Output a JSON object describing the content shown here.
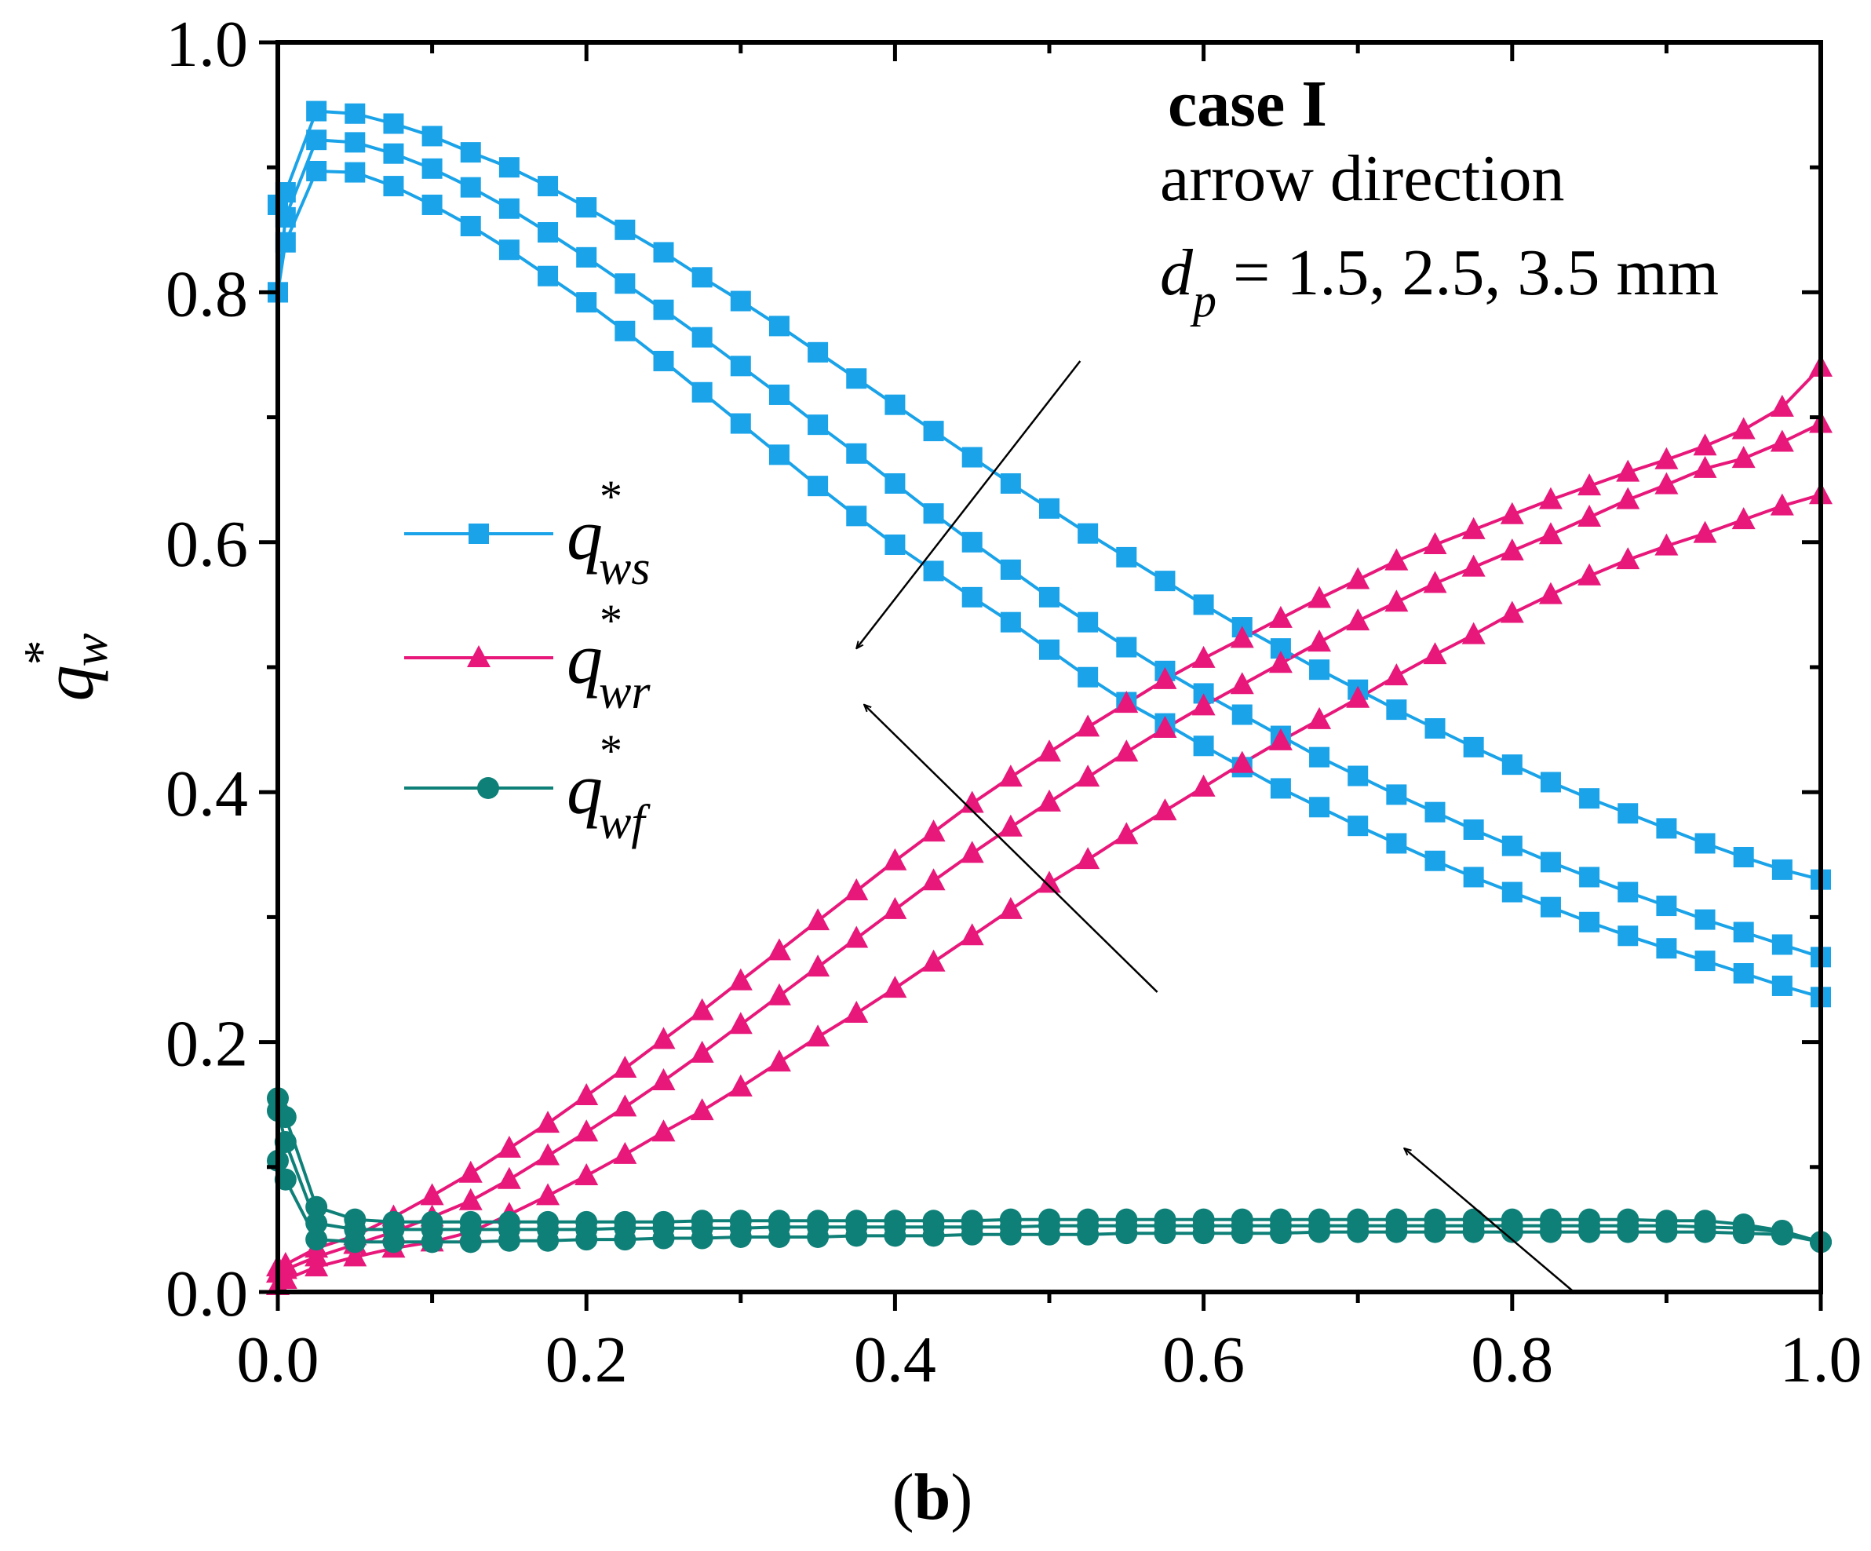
{
  "chart_data": {
    "type": "line",
    "title": "",
    "subfigure_label": {
      "open": "(",
      "letter": "b",
      "close": ")"
    },
    "xlabel": "",
    "ylabel": {
      "symbol": "q",
      "superscript": "*",
      "subscript": "w"
    },
    "xlim": [
      0,
      1.0
    ],
    "ylim": [
      0,
      1.0
    ],
    "x_ticks": [
      "0.0",
      "0.2",
      "0.4",
      "0.6",
      "0.8",
      "1.0"
    ],
    "y_ticks": [
      "0.0",
      "0.2",
      "0.4",
      "0.6",
      "0.8",
      "1.0"
    ],
    "grid": false,
    "legend": {
      "position": "center-left",
      "entries": [
        {
          "symbol": "q",
          "superscript": "*",
          "subscript": "ws",
          "marker": "square",
          "color": "#1aa3e8"
        },
        {
          "symbol": "q",
          "superscript": "*",
          "subscript": "wr",
          "marker": "triangle",
          "color": "#e8177a"
        },
        {
          "symbol": "q",
          "superscript": "*",
          "subscript": "wf",
          "marker": "circle",
          "color": "#0e8078"
        }
      ]
    },
    "annotations": {
      "line1": "case I",
      "line2": "arrow direction",
      "line3": {
        "symbol": "d",
        "subscript": "p",
        "text": " = 1.5, 2.5, 3.5 mm"
      }
    },
    "arrows": [
      {
        "from": [
          0.52,
          0.745
        ],
        "to": [
          0.375,
          0.515
        ]
      },
      {
        "from": [
          0.57,
          0.24
        ],
        "to": [
          0.38,
          0.47
        ]
      },
      {
        "from": [
          0.84,
          0.0
        ],
        "to": [
          0.73,
          0.115
        ]
      }
    ],
    "x": [
      0.0,
      0.005,
      0.025,
      0.05,
      0.075,
      0.1,
      0.125,
      0.15,
      0.175,
      0.2,
      0.225,
      0.25,
      0.275,
      0.3,
      0.325,
      0.35,
      0.375,
      0.4,
      0.425,
      0.45,
      0.475,
      0.5,
      0.525,
      0.55,
      0.575,
      0.6,
      0.625,
      0.65,
      0.675,
      0.7,
      0.725,
      0.75,
      0.775,
      0.8,
      0.825,
      0.85,
      0.875,
      0.9,
      0.925,
      0.95,
      0.975,
      1.0
    ],
    "series": [
      {
        "group": "q_ws",
        "name": "q*ws dp=1.5 mm",
        "color": "#1aa3e8",
        "marker": "square",
        "values": [
          0.87,
          0.88,
          0.945,
          0.943,
          0.935,
          0.925,
          0.912,
          0.9,
          0.885,
          0.868,
          0.85,
          0.832,
          0.812,
          0.793,
          0.773,
          0.752,
          0.731,
          0.71,
          0.689,
          0.668,
          0.647,
          0.627,
          0.607,
          0.588,
          0.569,
          0.55,
          0.532,
          0.515,
          0.498,
          0.482,
          0.466,
          0.451,
          0.436,
          0.422,
          0.408,
          0.395,
          0.383,
          0.371,
          0.359,
          0.348,
          0.338,
          0.33
        ]
      },
      {
        "group": "q_ws",
        "name": "q*ws dp=2.5 mm",
        "color": "#1aa3e8",
        "marker": "square",
        "values": [
          0.8,
          0.86,
          0.922,
          0.92,
          0.911,
          0.899,
          0.884,
          0.867,
          0.848,
          0.828,
          0.807,
          0.786,
          0.764,
          0.741,
          0.718,
          0.694,
          0.671,
          0.647,
          0.623,
          0.6,
          0.578,
          0.556,
          0.536,
          0.516,
          0.497,
          0.479,
          0.462,
          0.445,
          0.428,
          0.413,
          0.398,
          0.384,
          0.37,
          0.357,
          0.344,
          0.332,
          0.32,
          0.309,
          0.298,
          0.288,
          0.278,
          0.268
        ]
      },
      {
        "group": "q_ws",
        "name": "q*ws dp=3.5 mm",
        "color": "#1aa3e8",
        "marker": "square",
        "values": [
          0.8,
          0.84,
          0.897,
          0.896,
          0.885,
          0.87,
          0.853,
          0.834,
          0.813,
          0.792,
          0.769,
          0.745,
          0.72,
          0.695,
          0.67,
          0.645,
          0.621,
          0.598,
          0.577,
          0.556,
          0.536,
          0.514,
          0.492,
          0.472,
          0.455,
          0.437,
          0.42,
          0.403,
          0.388,
          0.373,
          0.359,
          0.345,
          0.332,
          0.32,
          0.308,
          0.296,
          0.285,
          0.275,
          0.265,
          0.255,
          0.245,
          0.236
        ]
      },
      {
        "group": "q_wr",
        "name": "q*wr dp=1.5 mm",
        "color": "#e8177a",
        "marker": "triangle",
        "values": [
          0.02,
          0.022,
          0.035,
          0.045,
          0.06,
          0.077,
          0.095,
          0.115,
          0.135,
          0.157,
          0.179,
          0.202,
          0.225,
          0.249,
          0.273,
          0.297,
          0.321,
          0.345,
          0.368,
          0.391,
          0.412,
          0.432,
          0.452,
          0.471,
          0.49,
          0.507,
          0.523,
          0.539,
          0.555,
          0.57,
          0.585,
          0.598,
          0.61,
          0.622,
          0.634,
          0.645,
          0.656,
          0.666,
          0.677,
          0.69,
          0.708,
          0.74
        ]
      },
      {
        "group": "q_wr",
        "name": "q*wr dp=2.5 mm",
        "color": "#e8177a",
        "marker": "triangle",
        "values": [
          0.015,
          0.018,
          0.028,
          0.038,
          0.048,
          0.06,
          0.073,
          0.09,
          0.109,
          0.128,
          0.148,
          0.169,
          0.191,
          0.214,
          0.237,
          0.26,
          0.283,
          0.306,
          0.329,
          0.351,
          0.372,
          0.392,
          0.412,
          0.432,
          0.451,
          0.469,
          0.486,
          0.503,
          0.52,
          0.537,
          0.552,
          0.567,
          0.58,
          0.593,
          0.606,
          0.62,
          0.634,
          0.646,
          0.659,
          0.667,
          0.68,
          0.695
        ]
      },
      {
        "group": "q_wr",
        "name": "q*wr dp=3.5 mm",
        "color": "#e8177a",
        "marker": "triangle",
        "values": [
          0.005,
          0.01,
          0.02,
          0.028,
          0.035,
          0.04,
          0.048,
          0.062,
          0.077,
          0.093,
          0.11,
          0.128,
          0.145,
          0.164,
          0.184,
          0.204,
          0.223,
          0.243,
          0.264,
          0.285,
          0.306,
          0.327,
          0.346,
          0.366,
          0.385,
          0.404,
          0.423,
          0.441,
          0.458,
          0.475,
          0.493,
          0.51,
          0.526,
          0.543,
          0.558,
          0.573,
          0.586,
          0.597,
          0.607,
          0.618,
          0.629,
          0.638
        ]
      },
      {
        "group": "q_wf",
        "name": "q*wf dp=1.5 mm",
        "color": "#0e8078",
        "marker": "circle",
        "values": [
          0.155,
          0.14,
          0.068,
          0.058,
          0.056,
          0.056,
          0.056,
          0.056,
          0.056,
          0.056,
          0.056,
          0.056,
          0.057,
          0.057,
          0.057,
          0.057,
          0.057,
          0.057,
          0.057,
          0.057,
          0.058,
          0.058,
          0.058,
          0.058,
          0.058,
          0.058,
          0.058,
          0.058,
          0.058,
          0.058,
          0.058,
          0.058,
          0.058,
          0.058,
          0.058,
          0.058,
          0.058,
          0.057,
          0.057,
          0.054,
          0.049,
          0.04
        ]
      },
      {
        "group": "q_wf",
        "name": "q*wf dp=2.5 mm",
        "color": "#0e8078",
        "marker": "circle",
        "values": [
          0.145,
          0.12,
          0.055,
          0.05,
          0.05,
          0.05,
          0.05,
          0.05,
          0.05,
          0.05,
          0.051,
          0.051,
          0.051,
          0.051,
          0.052,
          0.052,
          0.052,
          0.052,
          0.052,
          0.052,
          0.052,
          0.053,
          0.053,
          0.053,
          0.053,
          0.053,
          0.053,
          0.053,
          0.053,
          0.053,
          0.053,
          0.053,
          0.053,
          0.053,
          0.053,
          0.053,
          0.053,
          0.053,
          0.052,
          0.051,
          0.048,
          0.04
        ]
      },
      {
        "group": "q_wf",
        "name": "q*wf dp=3.5 mm",
        "color": "#0e8078",
        "marker": "circle",
        "values": [
          0.105,
          0.09,
          0.042,
          0.04,
          0.04,
          0.04,
          0.04,
          0.041,
          0.041,
          0.042,
          0.042,
          0.043,
          0.043,
          0.044,
          0.044,
          0.044,
          0.045,
          0.045,
          0.045,
          0.046,
          0.046,
          0.046,
          0.046,
          0.047,
          0.047,
          0.047,
          0.047,
          0.047,
          0.048,
          0.048,
          0.048,
          0.048,
          0.048,
          0.048,
          0.048,
          0.048,
          0.048,
          0.048,
          0.048,
          0.047,
          0.046,
          0.04
        ]
      }
    ]
  }
}
